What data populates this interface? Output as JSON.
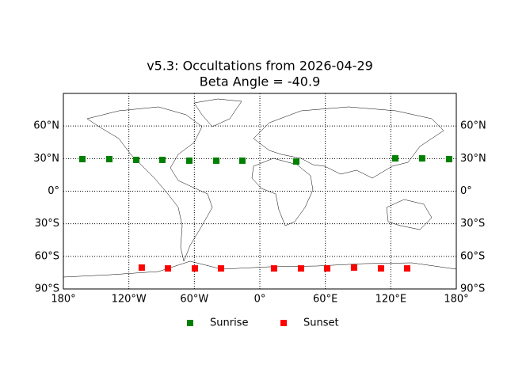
{
  "chart_data": {
    "type": "scatter",
    "title": "v5.3: Occultations from 2026-04-29",
    "subtitle": "Beta Angle = -40.9",
    "xlim": [
      -180,
      180
    ],
    "ylim": [
      -90,
      90
    ],
    "xticks": [
      {
        "value": -180,
        "label": "180°"
      },
      {
        "value": -120,
        "label": "120°W"
      },
      {
        "value": -60,
        "label": "60°W"
      },
      {
        "value": 0,
        "label": "0°"
      },
      {
        "value": 60,
        "label": "60°E"
      },
      {
        "value": 120,
        "label": "120°E"
      },
      {
        "value": 180,
        "label": "180°"
      }
    ],
    "yticks": [
      {
        "value": -90,
        "label": "90°S"
      },
      {
        "value": -60,
        "label": "60°S"
      },
      {
        "value": -30,
        "label": "30°S"
      },
      {
        "value": 0,
        "label": "0°"
      },
      {
        "value": 30,
        "label": "30°N"
      },
      {
        "value": 60,
        "label": "60°N"
      }
    ],
    "grid": true,
    "legend": "bottom",
    "series": [
      {
        "name": "Sunrise",
        "color": "#008000",
        "x": [
          -162.6,
          -137.9,
          -113.2,
          -89.3,
          -64.6,
          -39.9,
          -16.0,
          33.4,
          124.1,
          148.7,
          173.4
        ],
        "values": [
          29.5,
          29.5,
          28.8,
          28.8,
          28.1,
          28.1,
          28.1,
          27.3,
          30.2,
          30.2,
          29.5
        ]
      },
      {
        "name": "Sunset",
        "color": "#ff0000",
        "x": [
          -108.2,
          -84.2,
          -59.5,
          -35.6,
          13.0,
          37.7,
          61.7,
          86.3,
          111.0,
          135.0
        ],
        "values": [
          -70.3,
          -71.1,
          -71.1,
          -71.1,
          -71.1,
          -71.1,
          -71.1,
          -70.3,
          -71.1,
          -71.1
        ]
      }
    ]
  }
}
